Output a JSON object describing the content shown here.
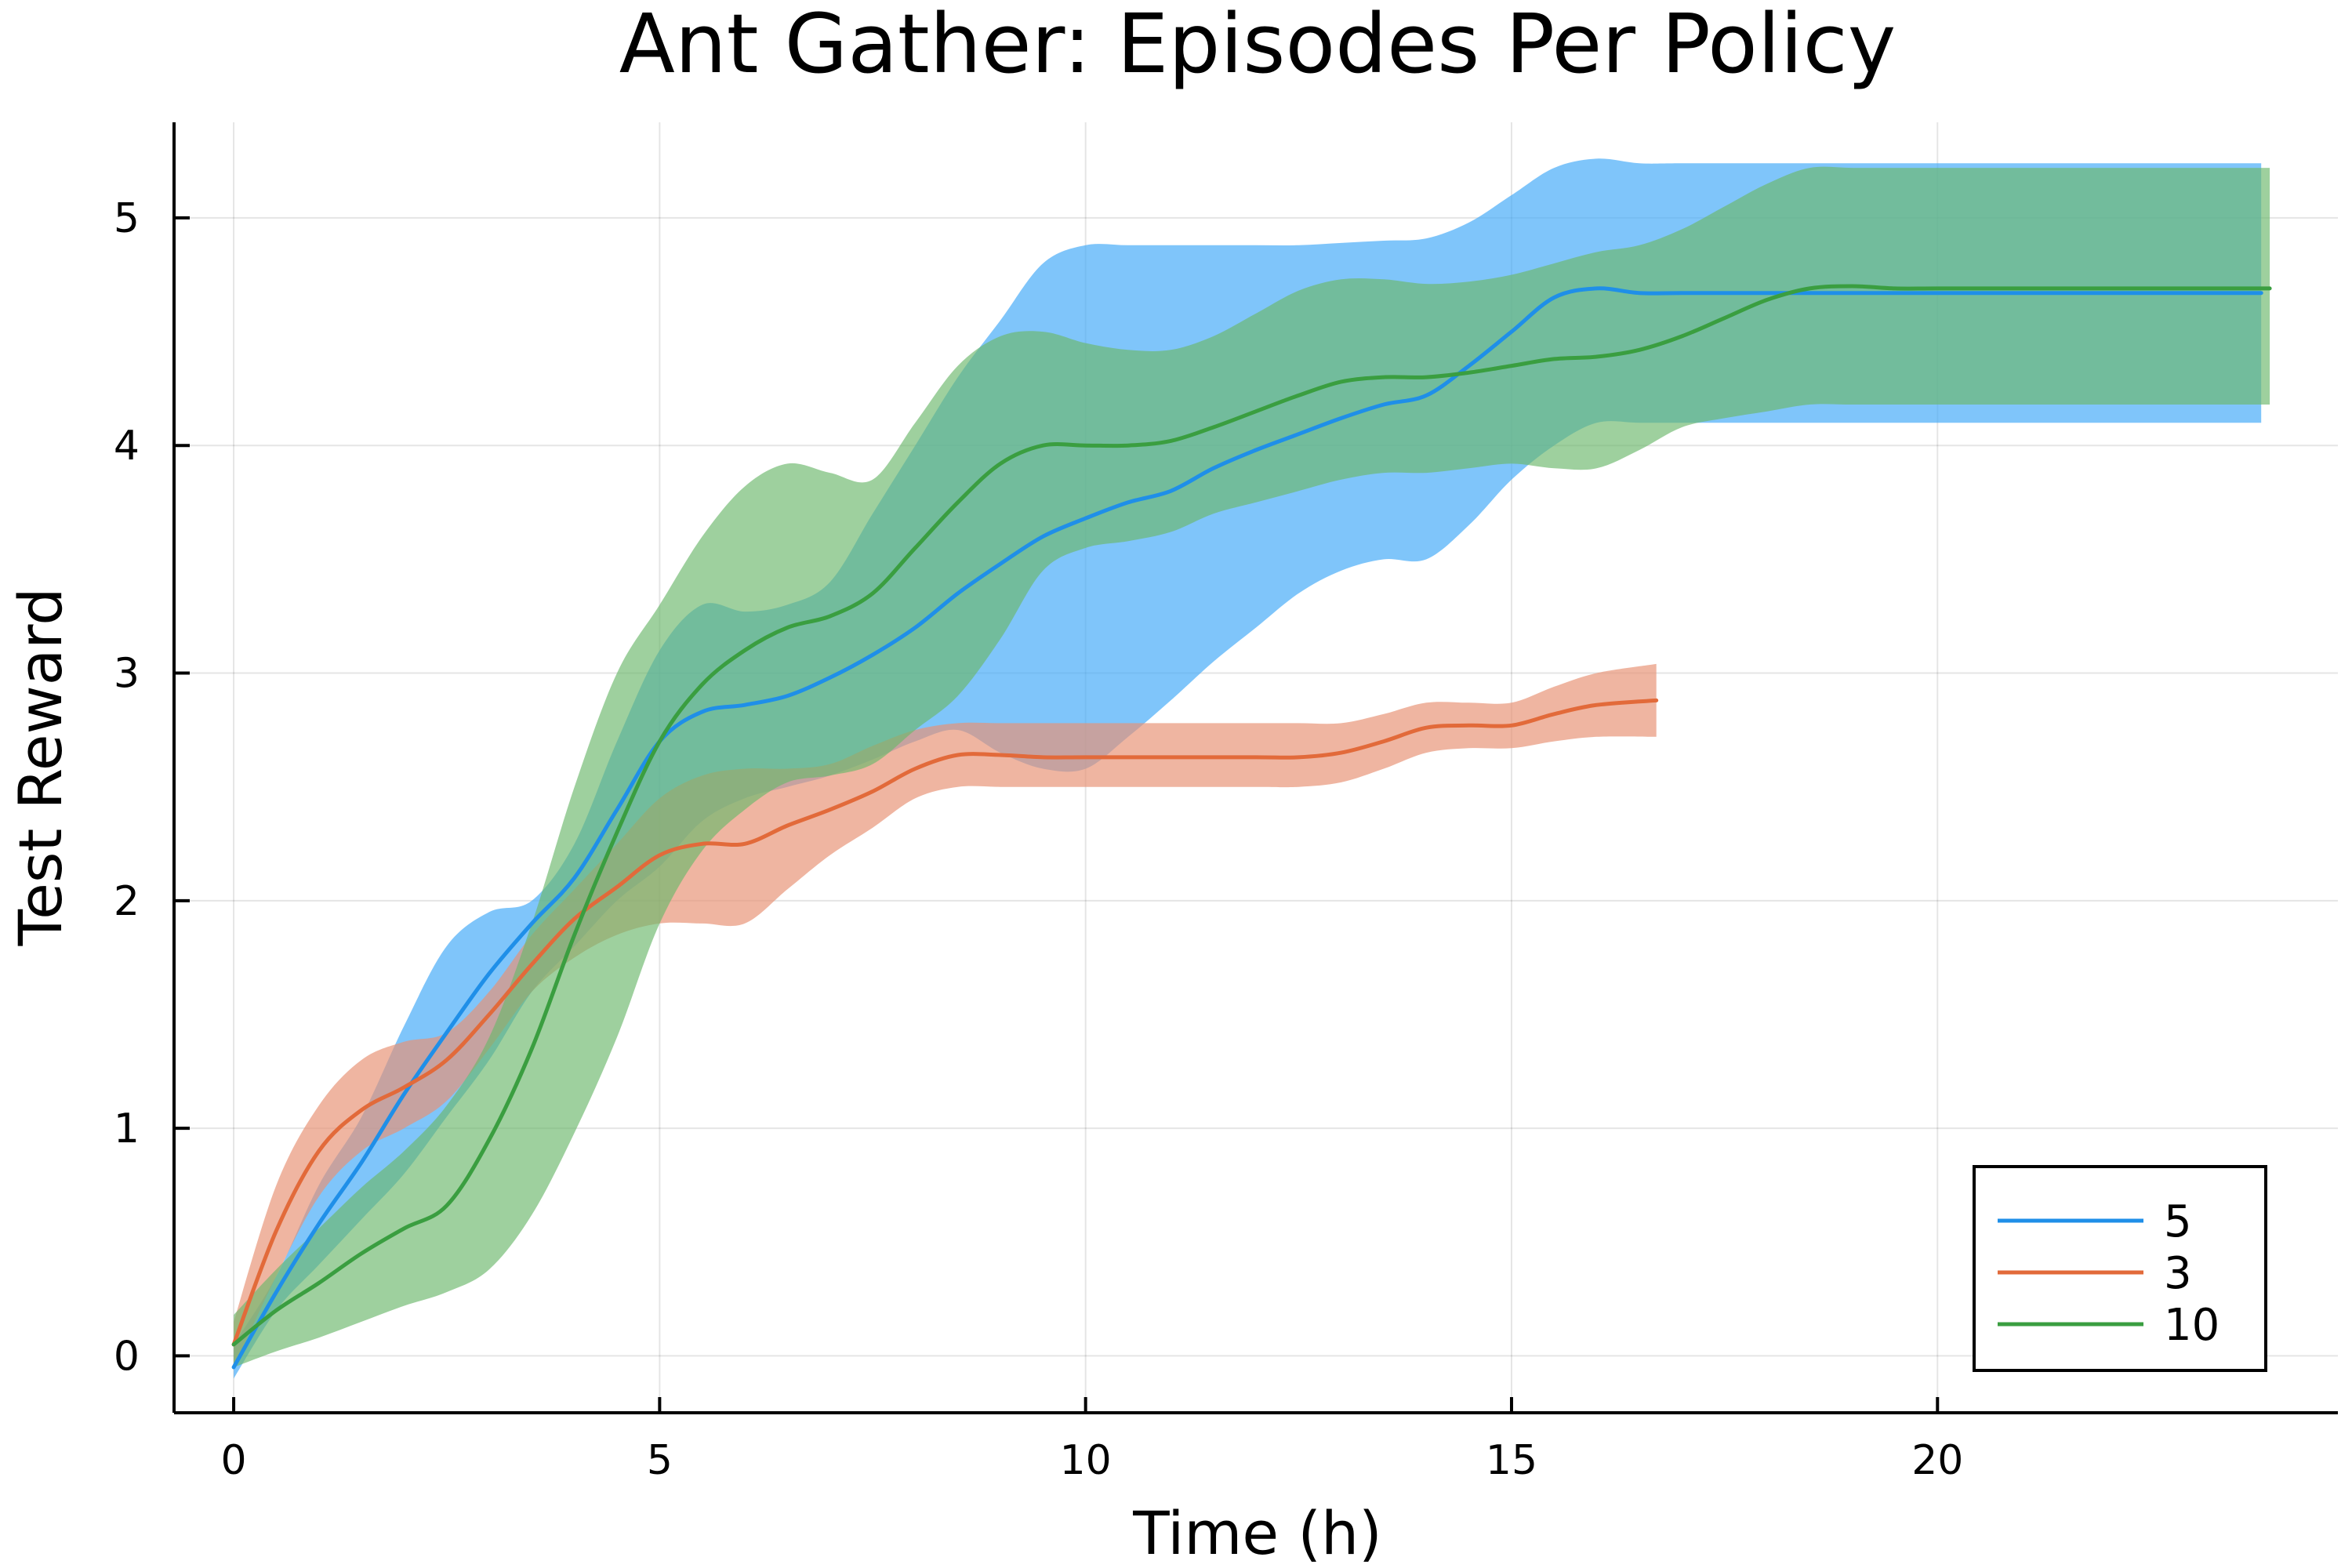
{
  "chart_data": {
    "type": "line",
    "title": "Ant Gather: Episodes Per Policy",
    "xlabel": "Time (h)",
    "ylabel": "Test Reward",
    "xlim": [
      -0.7,
      24.7
    ],
    "ylim": [
      -0.25,
      5.42
    ],
    "xticks": [
      0,
      5,
      10,
      15,
      20
    ],
    "yticks": [
      0,
      1,
      2,
      3,
      4,
      5
    ],
    "grid": true,
    "legend_position": "bottom-right",
    "series": [
      {
        "name": "5",
        "color": "#1f8fe8",
        "band_color": "#42aaf7",
        "band_opacity": 0.68,
        "x": [
          0.0,
          0.5,
          1.0,
          1.5,
          2.0,
          2.5,
          3.0,
          3.5,
          4.0,
          4.5,
          5.0,
          5.5,
          6.0,
          6.5,
          7.0,
          7.5,
          8.0,
          8.5,
          9.0,
          9.5,
          10.0,
          10.5,
          11.0,
          11.5,
          12.0,
          12.5,
          13.0,
          13.5,
          14.0,
          14.5,
          15.0,
          15.5,
          16.0,
          16.5,
          17.0,
          18.0,
          19.0,
          20.0,
          21.0,
          22.0,
          23.0,
          23.8
        ],
        "y": [
          -0.05,
          0.28,
          0.58,
          0.85,
          1.15,
          1.42,
          1.68,
          1.9,
          2.1,
          2.4,
          2.7,
          2.83,
          2.86,
          2.9,
          2.98,
          3.08,
          3.2,
          3.35,
          3.48,
          3.6,
          3.68,
          3.75,
          3.8,
          3.9,
          3.98,
          4.05,
          4.12,
          4.18,
          4.22,
          4.35,
          4.5,
          4.65,
          4.69,
          4.67,
          4.67,
          4.67,
          4.67,
          4.67,
          4.67,
          4.67,
          4.67,
          4.67
        ],
        "lower": [
          -0.1,
          0.2,
          0.4,
          0.6,
          0.8,
          1.05,
          1.3,
          1.6,
          1.8,
          2.0,
          2.15,
          2.35,
          2.45,
          2.5,
          2.55,
          2.62,
          2.7,
          2.75,
          2.65,
          2.58,
          2.58,
          2.72,
          2.88,
          3.05,
          3.2,
          3.35,
          3.45,
          3.5,
          3.5,
          3.65,
          3.85,
          4.0,
          4.1,
          4.1,
          4.1,
          4.1,
          4.1,
          4.1,
          4.1,
          4.1,
          4.1,
          4.1
        ],
        "upper": [
          0.05,
          0.35,
          0.75,
          1.05,
          1.45,
          1.8,
          1.95,
          2.0,
          2.25,
          2.7,
          3.1,
          3.3,
          3.27,
          3.3,
          3.4,
          3.7,
          4.0,
          4.3,
          4.55,
          4.8,
          4.88,
          4.88,
          4.88,
          4.88,
          4.88,
          4.88,
          4.89,
          4.9,
          4.91,
          4.98,
          5.1,
          5.22,
          5.26,
          5.24,
          5.24,
          5.24,
          5.24,
          5.24,
          5.24,
          5.24,
          5.24,
          5.24
        ]
      },
      {
        "name": "3",
        "color": "#e26a3a",
        "band_color": "#e89274",
        "band_opacity": 0.68,
        "x": [
          0.0,
          0.5,
          1.0,
          1.5,
          2.0,
          2.5,
          3.0,
          3.5,
          4.0,
          4.5,
          5.0,
          5.5,
          6.0,
          6.5,
          7.0,
          7.5,
          8.0,
          8.5,
          9.0,
          9.5,
          10.0,
          11.0,
          12.0,
          12.5,
          13.0,
          13.5,
          14.0,
          14.5,
          15.0,
          15.5,
          16.0,
          16.7
        ],
        "y": [
          0.05,
          0.55,
          0.9,
          1.08,
          1.18,
          1.3,
          1.5,
          1.72,
          1.92,
          2.06,
          2.2,
          2.25,
          2.25,
          2.33,
          2.4,
          2.48,
          2.58,
          2.64,
          2.64,
          2.63,
          2.63,
          2.63,
          2.63,
          2.63,
          2.65,
          2.7,
          2.76,
          2.77,
          2.77,
          2.82,
          2.86,
          2.88
        ],
        "lower": [
          -0.05,
          0.35,
          0.7,
          0.9,
          1.0,
          1.12,
          1.35,
          1.6,
          1.75,
          1.85,
          1.9,
          1.9,
          1.9,
          2.05,
          2.2,
          2.32,
          2.45,
          2.5,
          2.5,
          2.5,
          2.5,
          2.5,
          2.5,
          2.5,
          2.52,
          2.58,
          2.65,
          2.67,
          2.67,
          2.7,
          2.72,
          2.72
        ],
        "upper": [
          0.15,
          0.75,
          1.1,
          1.3,
          1.38,
          1.42,
          1.6,
          1.85,
          2.05,
          2.25,
          2.45,
          2.55,
          2.58,
          2.58,
          2.6,
          2.68,
          2.75,
          2.78,
          2.78,
          2.78,
          2.78,
          2.78,
          2.78,
          2.78,
          2.78,
          2.82,
          2.87,
          2.87,
          2.87,
          2.94,
          3.0,
          3.04
        ]
      },
      {
        "name": "10",
        "color": "#3a9e40",
        "band_color": "#6cb86c",
        "band_opacity": 0.66,
        "x": [
          0.0,
          0.5,
          1.0,
          1.5,
          2.0,
          2.5,
          3.0,
          3.5,
          4.0,
          4.5,
          5.0,
          5.5,
          6.0,
          6.5,
          7.0,
          7.5,
          8.0,
          8.5,
          9.0,
          9.5,
          10.0,
          10.5,
          11.0,
          11.5,
          12.0,
          12.5,
          13.0,
          13.5,
          14.0,
          14.5,
          15.0,
          15.5,
          16.0,
          16.5,
          17.0,
          17.5,
          18.0,
          18.5,
          19.0,
          19.5,
          20.0,
          21.0,
          22.0,
          23.0,
          23.9
        ],
        "y": [
          0.05,
          0.2,
          0.32,
          0.45,
          0.56,
          0.66,
          0.95,
          1.35,
          1.85,
          2.3,
          2.7,
          2.95,
          3.1,
          3.2,
          3.25,
          3.35,
          3.55,
          3.75,
          3.92,
          4.0,
          4.0,
          4.0,
          4.02,
          4.08,
          4.15,
          4.22,
          4.28,
          4.3,
          4.3,
          4.32,
          4.35,
          4.38,
          4.39,
          4.42,
          4.48,
          4.56,
          4.64,
          4.69,
          4.7,
          4.69,
          4.69,
          4.69,
          4.69,
          4.69,
          4.69
        ],
        "lower": [
          -0.05,
          0.02,
          0.08,
          0.15,
          0.22,
          0.28,
          0.38,
          0.62,
          0.98,
          1.4,
          1.9,
          2.22,
          2.4,
          2.52,
          2.55,
          2.6,
          2.75,
          2.9,
          3.15,
          3.45,
          3.55,
          3.58,
          3.62,
          3.7,
          3.75,
          3.8,
          3.85,
          3.88,
          3.88,
          3.9,
          3.92,
          3.9,
          3.9,
          3.98,
          4.08,
          4.12,
          4.15,
          4.18,
          4.18,
          4.18,
          4.18,
          4.18,
          4.18,
          4.18,
          4.18
        ],
        "upper": [
          0.18,
          0.38,
          0.56,
          0.74,
          0.9,
          1.1,
          1.4,
          1.9,
          2.5,
          3.0,
          3.3,
          3.6,
          3.82,
          3.92,
          3.88,
          3.85,
          4.1,
          4.35,
          4.48,
          4.5,
          4.45,
          4.42,
          4.42,
          4.48,
          4.58,
          4.68,
          4.73,
          4.73,
          4.71,
          4.72,
          4.75,
          4.8,
          4.85,
          4.88,
          4.95,
          5.05,
          5.15,
          5.22,
          5.22,
          5.22,
          5.22,
          5.22,
          5.22,
          5.22,
          5.22
        ]
      }
    ]
  }
}
